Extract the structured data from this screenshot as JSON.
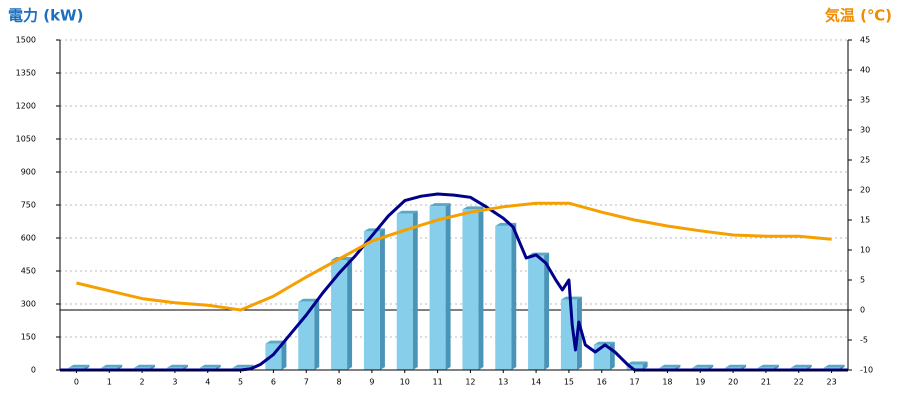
{
  "chart_data": {
    "type": "combo",
    "y_title": "電力 (kW)",
    "y2_title": "気温 (℃)",
    "xlim": [
      -0.5,
      23.5
    ],
    "xticks": [
      0,
      1,
      2,
      3,
      4,
      5,
      6,
      7,
      8,
      9,
      10,
      11,
      12,
      13,
      14,
      15,
      16,
      17,
      18,
      19,
      20,
      21,
      22,
      23
    ],
    "ylim": [
      0,
      1500
    ],
    "yticks": [
      0,
      150,
      300,
      450,
      600,
      750,
      900,
      1050,
      1200,
      1350,
      1500
    ],
    "y2lim": [
      -10,
      45
    ],
    "y2ticks": [
      -10,
      -5,
      0,
      5,
      10,
      15,
      20,
      25,
      30,
      35,
      40,
      45
    ],
    "grid": true,
    "y2_zero_line": true,
    "series": [
      {
        "type": "bar",
        "color": "#87ceeb",
        "x": [
          0,
          1,
          2,
          3,
          4,
          5,
          6,
          7,
          8,
          9,
          10,
          11,
          12,
          13,
          14,
          15,
          16,
          17,
          18,
          19,
          20,
          21,
          22,
          23
        ],
        "values": [
          10,
          10,
          10,
          10,
          10,
          10,
          120,
          310,
          500,
          630,
          710,
          745,
          730,
          655,
          520,
          320,
          115,
          25,
          10,
          10,
          10,
          10,
          10,
          10
        ]
      },
      {
        "type": "line",
        "color": "#00008b",
        "x": [
          -0.5,
          5,
          5.3,
          5.6,
          6,
          6.5,
          7,
          7.5,
          8,
          8.5,
          9,
          9.5,
          10,
          10.5,
          11,
          11.5,
          12,
          12.5,
          13,
          13.3,
          13.7,
          14,
          14.3,
          14.6,
          14.8,
          15,
          15.1,
          15.2,
          15.3,
          15.5,
          15.8,
          16.1,
          16.4,
          16.8,
          17,
          23.5
        ],
        "values": [
          0,
          0,
          5,
          25,
          70,
          160,
          250,
          350,
          440,
          520,
          610,
          700,
          770,
          790,
          800,
          795,
          785,
          740,
          690,
          650,
          509,
          523,
          486,
          409,
          364,
          409,
          205,
          91,
          218,
          114,
          82,
          114,
          82,
          23,
          0,
          0
        ]
      },
      {
        "type": "line",
        "axis": "y2",
        "color": "#f5a000",
        "x": [
          0,
          1,
          2,
          3,
          4,
          5,
          6,
          7,
          8,
          9,
          10,
          11,
          12,
          13,
          14,
          15,
          16,
          17,
          18,
          19,
          20,
          21,
          22,
          23
        ],
        "values": [
          4.5,
          3.2,
          1.9,
          1.2,
          0.8,
          0,
          2.3,
          5.5,
          8.5,
          11.5,
          13.3,
          15,
          16.3,
          17.2,
          17.8,
          17.8,
          16.3,
          15,
          14,
          13.2,
          12.5,
          12.3,
          12.3,
          11.8
        ]
      }
    ]
  }
}
